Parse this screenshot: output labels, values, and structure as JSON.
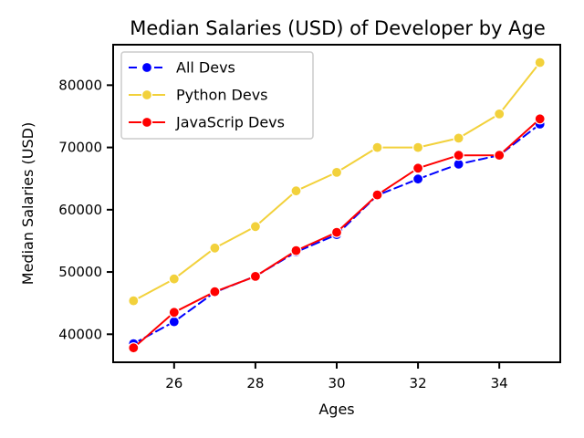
{
  "chart_data": {
    "type": "line",
    "title": "Median Salaries (USD) of Developer by Age",
    "xlabel": "Ages",
    "ylabel": "Median Salaries (USD)",
    "x": [
      25,
      26,
      27,
      28,
      29,
      30,
      31,
      32,
      33,
      34,
      35
    ],
    "xlim": [
      24.5,
      35.5
    ],
    "ylim": [
      35500,
      86500
    ],
    "xticks": [
      26,
      28,
      30,
      32,
      34
    ],
    "yticks": [
      40000,
      50000,
      60000,
      70000,
      80000
    ],
    "xtick_labels": [
      "26",
      "28",
      "30",
      "32",
      "34"
    ],
    "ytick_labels": [
      "40000",
      "50000",
      "60000",
      "70000",
      "80000"
    ],
    "grid": false,
    "legend_position": "top-left",
    "series": [
      {
        "name": "All Devs",
        "color": "#0000ff",
        "linestyle": "dashed",
        "values": [
          38496,
          42000,
          46752,
          49320,
          53200,
          56000,
          62316,
          64928,
          67317,
          68748,
          73752
        ]
      },
      {
        "name": "Python Devs",
        "color": "#f2d13b",
        "linestyle": "solid",
        "values": [
          45372,
          48876,
          53850,
          57287,
          63016,
          65998,
          70003,
          70000,
          71496,
          75370,
          83640
        ]
      },
      {
        "name": "JavaScrip Devs",
        "color": "#ff0000",
        "linestyle": "solid",
        "values": [
          37810,
          43515,
          46823,
          49293,
          53437,
          56373,
          62375,
          66674,
          68745,
          68746,
          74583
        ]
      }
    ]
  }
}
